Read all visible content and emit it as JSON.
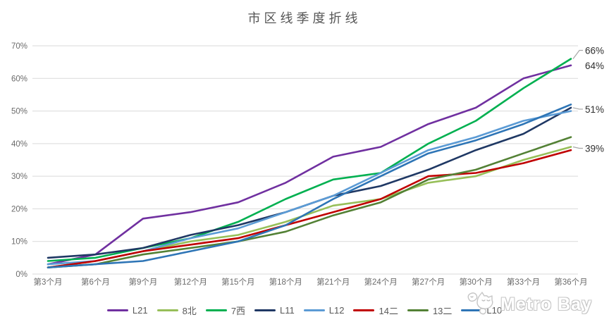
{
  "title": "市区线季度折线",
  "watermark": {
    "brand": "Metro Bay"
  },
  "chart_data": {
    "type": "line",
    "title": "市区线季度折线",
    "categories": [
      "第3个月",
      "第6个月",
      "第9个月",
      "第12个月",
      "第15个月",
      "第18个月",
      "第21个月",
      "第24个月",
      "第27个月",
      "第30个月",
      "第33个月",
      "第36个月"
    ],
    "series": [
      {
        "name": "L21",
        "color": "#7030A0",
        "values": [
          3,
          6,
          17,
          19,
          22,
          28,
          36,
          39,
          46,
          51,
          60,
          64
        ]
      },
      {
        "name": "8北",
        "color": "#97BF59",
        "values": [
          2,
          4,
          7,
          10,
          12,
          16,
          21,
          23,
          28,
          30,
          35,
          39
        ]
      },
      {
        "name": "7西",
        "color": "#00B050",
        "values": [
          4,
          5,
          8,
          11,
          16,
          23,
          29,
          31,
          40,
          47,
          57,
          66
        ]
      },
      {
        "name": "L11",
        "color": "#1F3864",
        "values": [
          5,
          6,
          8,
          12,
          15,
          19,
          24,
          27,
          32,
          38,
          43,
          51
        ]
      },
      {
        "name": "L12",
        "color": "#5B9BD5",
        "values": [
          3,
          4,
          7,
          11,
          14,
          19,
          24,
          31,
          38,
          42,
          47,
          50
        ]
      },
      {
        "name": "14二",
        "color": "#C00000",
        "values": [
          2,
          4,
          7,
          9,
          11,
          15,
          19,
          23,
          30,
          31,
          34,
          38
        ]
      },
      {
        "name": "13二",
        "color": "#538135",
        "values": [
          2,
          3,
          6,
          8,
          10,
          13,
          18,
          22,
          29,
          32,
          37,
          42
        ]
      },
      {
        "name": "L10",
        "color": "#2E75B6",
        "values": [
          2,
          3,
          4,
          7,
          10,
          15,
          23,
          30,
          37,
          41,
          46,
          52
        ]
      }
    ],
    "ylabel": "",
    "xlabel": "",
    "ylim": [
      0,
      70
    ],
    "y_ticks": [
      "0%",
      "10%",
      "20%",
      "30%",
      "40%",
      "50%",
      "60%",
      "70%"
    ],
    "grid": true,
    "legend_position": "bottom",
    "end_labels": [
      {
        "text": "66%",
        "series": "7西",
        "offset_y": -12
      },
      {
        "text": "64%",
        "series": "L21",
        "offset_y": 0
      },
      {
        "text": "51%",
        "series": "L11",
        "offset_y": 2
      },
      {
        "text": "39%",
        "series": "8北",
        "offset_y": 2
      }
    ],
    "grid_color": "#d9d9d9",
    "leader_color": "#a6a6a6"
  }
}
